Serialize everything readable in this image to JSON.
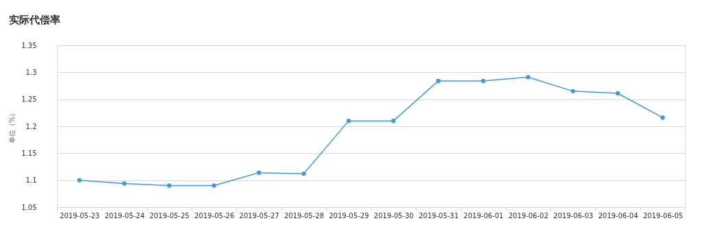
{
  "chart_data": {
    "type": "line",
    "title": "实际代偿率",
    "ylabel": "单位（%）",
    "categories": [
      "2019-05-23",
      "2019-05-24",
      "2019-05-25",
      "2019-05-26",
      "2019-05-27",
      "2019-05-28",
      "2019-05-29",
      "2019-05-30",
      "2019-05-31",
      "2019-06-01",
      "2019-06-02",
      "2019-06-03",
      "2019-06-04",
      "2019-06-05"
    ],
    "series": [
      {
        "color": "#3d9be3",
        "values": [
          1.1,
          1.094,
          1.09,
          1.09,
          1.114,
          1.112,
          1.21,
          1.21,
          1.284,
          1.284,
          1.291,
          1.265,
          1.261,
          1.216
        ]
      }
    ],
    "ylim": [
      1.05,
      1.35
    ],
    "yticks": [
      1.05,
      1.1,
      1.15,
      1.2,
      1.25,
      1.3,
      1.35
    ],
    "grid": "y",
    "marker": "circle",
    "line_style": "solid",
    "legend": false
  }
}
